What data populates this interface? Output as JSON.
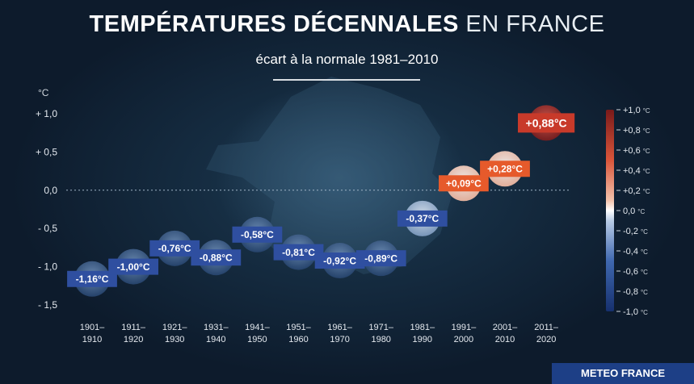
{
  "title": {
    "main": "TEMPÉRATURES DÉCENNALES",
    "suffix": " EN FRANCE"
  },
  "subtitle": "écart à la normale 1981–2010",
  "footer": "METEO FRANCE",
  "colors": {
    "cold_label": "#2f4fa0",
    "warm_label": "#e65a2b",
    "hot_label": "#c83a2a"
  },
  "chart_data": {
    "type": "scatter",
    "title": "TEMPÉRATURES DÉCENNALES EN FRANCE",
    "subtitle": "écart à la normale 1981–2010",
    "ylabel": "°C",
    "ylim": [
      -1.5,
      1.0
    ],
    "yticks": [
      "+ 1,0",
      "+ 0,5",
      "0,0",
      "- 0,5",
      "- 1,0",
      "- 1,5"
    ],
    "ytick_values": [
      1.0,
      0.5,
      0.0,
      -0.5,
      -1.0,
      -1.5
    ],
    "categories": [
      [
        "1901–",
        "1910"
      ],
      [
        "1911–",
        "1920"
      ],
      [
        "1921–",
        "1930"
      ],
      [
        "1931–",
        "1940"
      ],
      [
        "1941–",
        "1950"
      ],
      [
        "1951–",
        "1960"
      ],
      [
        "1961–",
        "1970"
      ],
      [
        "1971–",
        "1980"
      ],
      [
        "1981–",
        "1990"
      ],
      [
        "1991–",
        "2000"
      ],
      [
        "2001–",
        "2010"
      ],
      [
        "2011–",
        "2020"
      ]
    ],
    "values": [
      -1.16,
      -1.0,
      -0.76,
      -0.88,
      -0.58,
      -0.81,
      -0.92,
      -0.89,
      -0.37,
      0.09,
      0.28,
      0.88
    ],
    "labels": [
      "-1,16°C",
      "-1,00°C",
      "-0,76°C",
      "-0,88°C",
      "-0,58°C",
      "-0,81°C",
      "-0,92°C",
      "-0,89°C",
      "-0,37°C",
      "+0,09°C",
      "+0,28°C",
      "+0,88°C"
    ],
    "colorbar": {
      "ticks": [
        "+1,0",
        "+0,8",
        "+0,6",
        "+0,4",
        "+0,2",
        "0,0",
        "-0,2",
        "-0,4",
        "-0,6",
        "-0,8",
        "-1,0"
      ],
      "tick_values": [
        1.0,
        0.8,
        0.6,
        0.4,
        0.2,
        0.0,
        -0.2,
        -0.4,
        -0.6,
        -0.8,
        -1.0
      ],
      "unit": "°C"
    },
    "grid": "dotted line at 0,0"
  }
}
